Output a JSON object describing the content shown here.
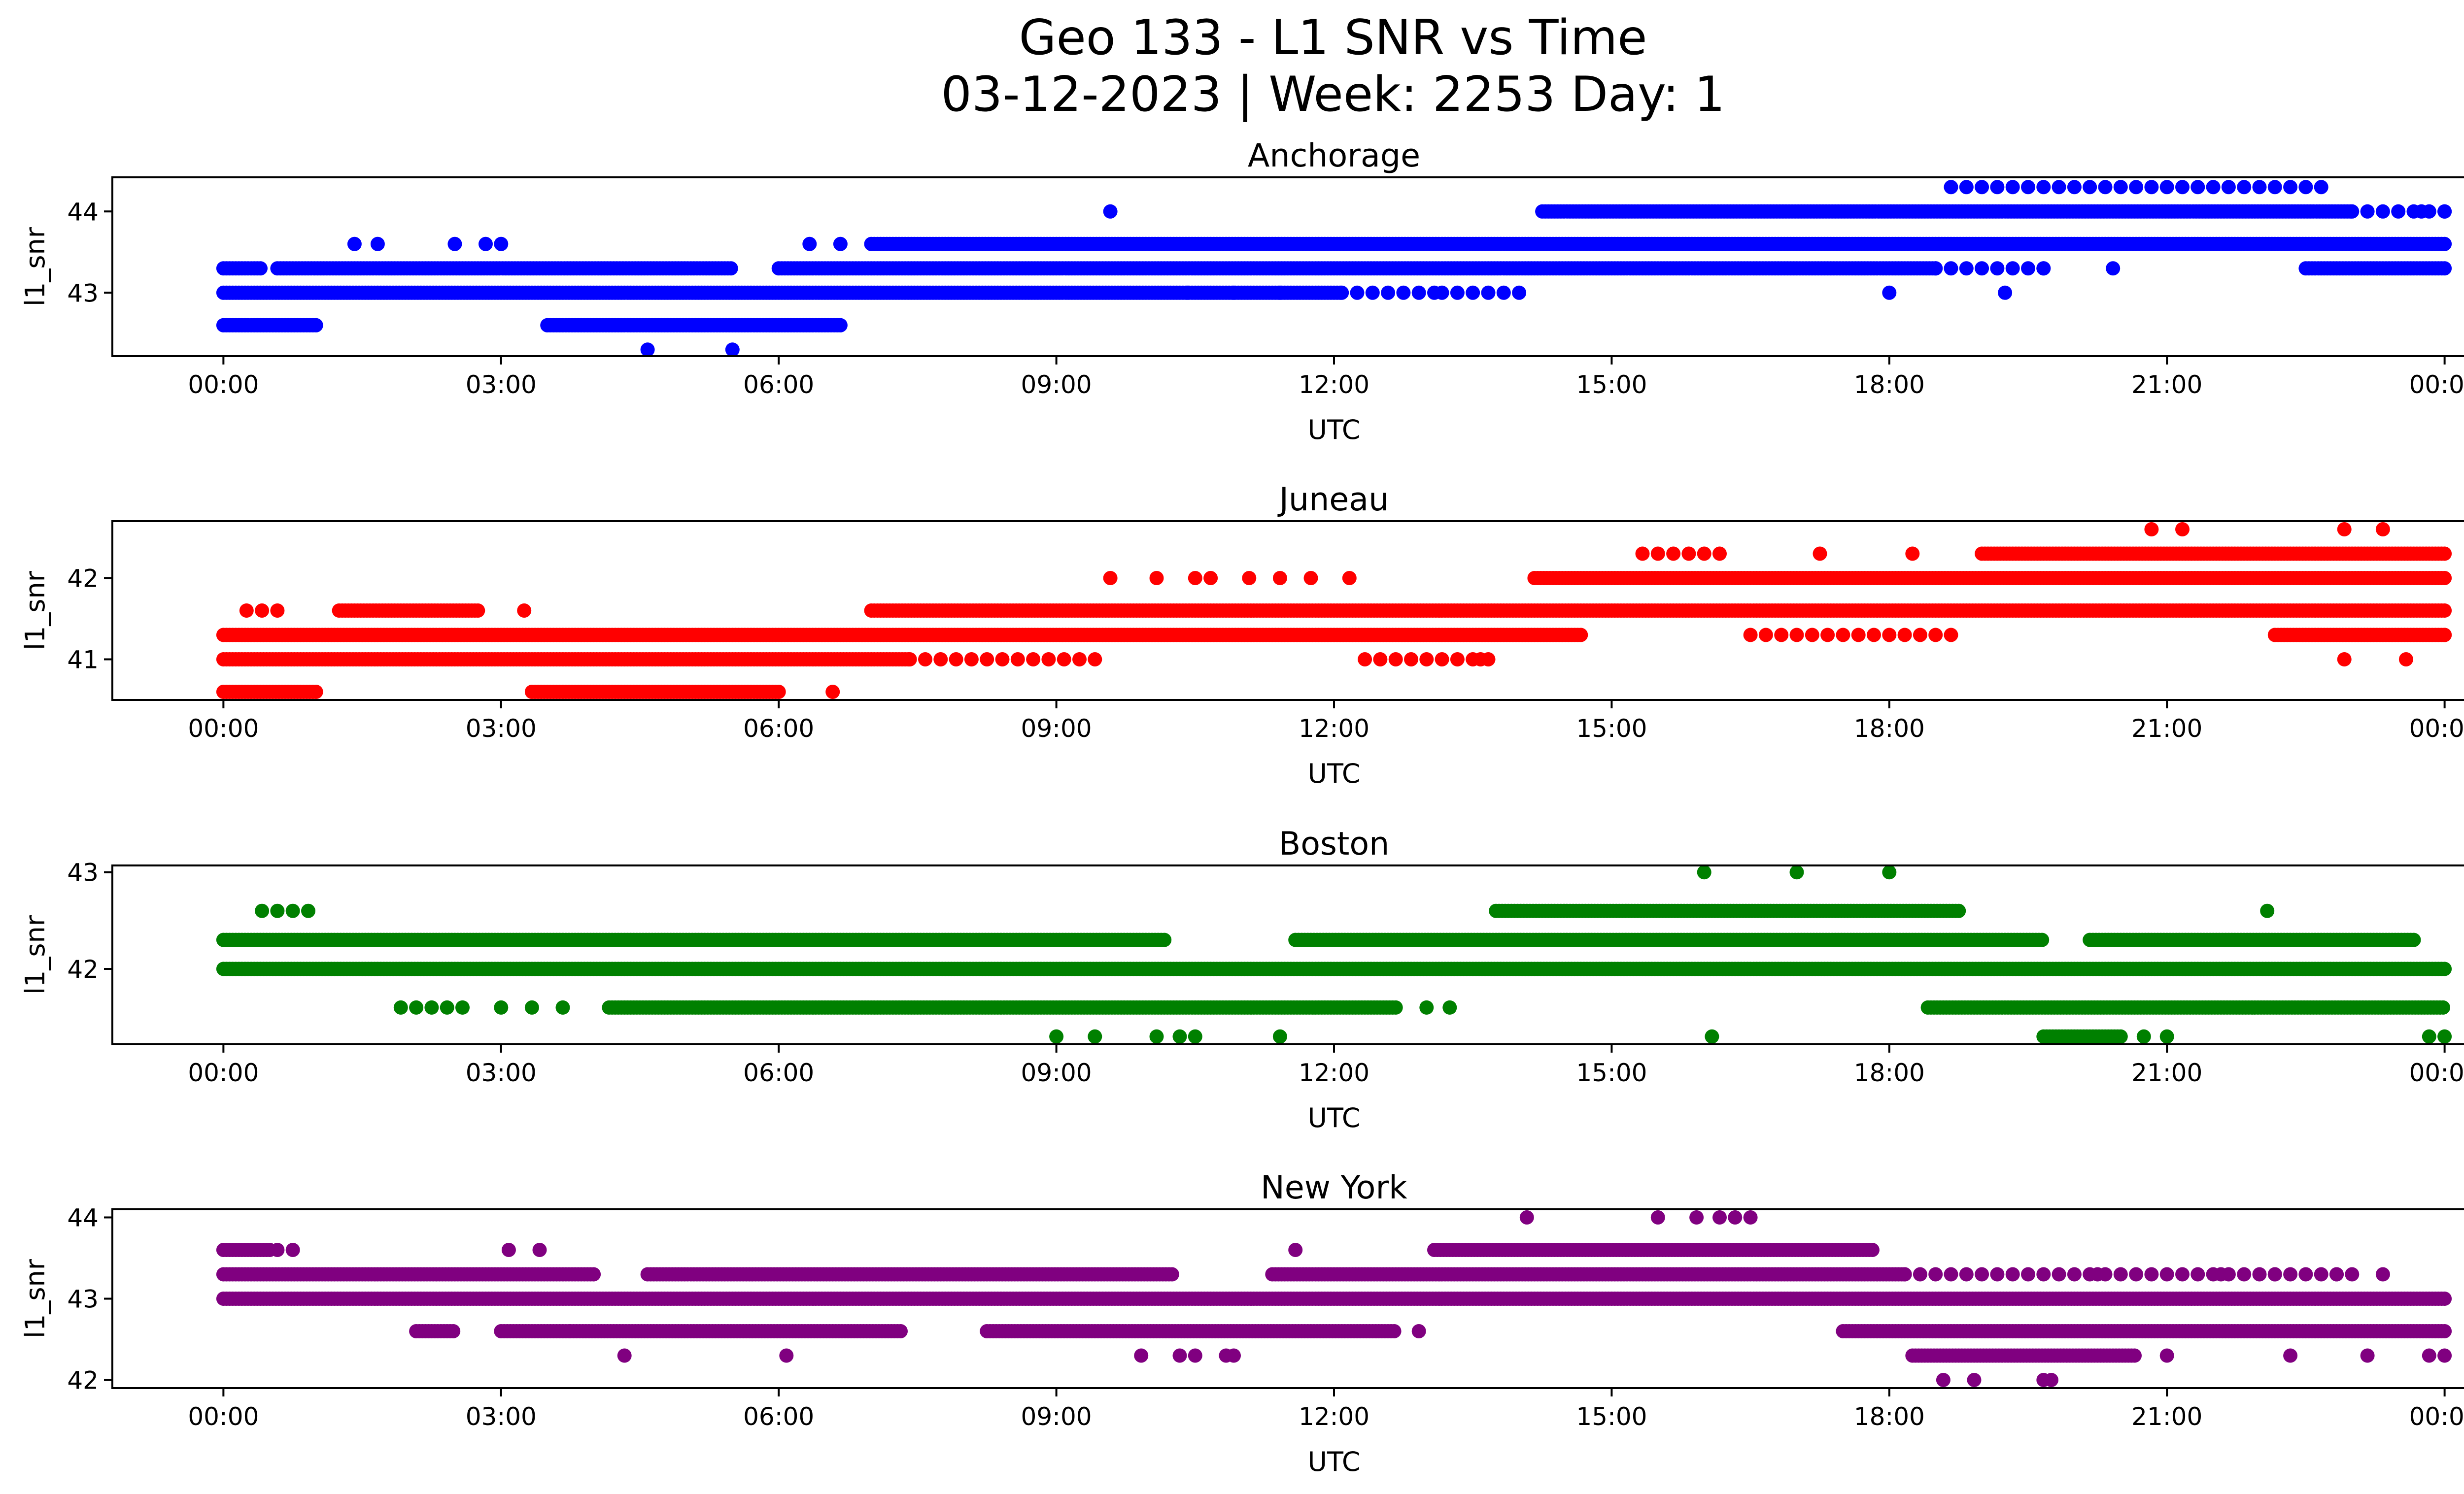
{
  "figure": {
    "title_line1": "Geo 133 - L1 SNR vs Time",
    "title_line2": "03-12-2023 | Week: 2253 Day: 1"
  },
  "chart_data": [
    {
      "type": "scatter",
      "title": "Anchorage",
      "xlabel": "UTC",
      "ylabel": "l1_snr",
      "color": "#0000ff",
      "xlim": [
        "-01:12",
        "25:12"
      ],
      "ylim": [
        42.22,
        44.42
      ],
      "x_ticks": [
        "00:00",
        "03:00",
        "06:00",
        "09:00",
        "12:00",
        "15:00",
        "18:00",
        "21:00",
        "00:00"
      ],
      "y_ticks": [
        43,
        44
      ],
      "levels": [
        {
          "y": 43.0,
          "ranges": [
            [
              "00:00",
              "12:05"
            ],
            [
              "12:05",
              "13:10",
              "sparse"
            ],
            [
              "13:10",
              "14:00",
              "sparse"
            ]
          ]
        },
        {
          "y": 43.3,
          "ranges": [
            [
              "00:00",
              "00:25"
            ],
            [
              "00:35",
              "05:30"
            ],
            [
              "06:00",
              "18:30"
            ],
            [
              "18:30",
              "19:40",
              "sparse"
            ],
            [
              "22:30",
              "24:00"
            ]
          ]
        },
        {
          "y": 43.6,
          "ranges": [
            [
              "07:00",
              "24:00"
            ]
          ]
        },
        {
          "y": 44.0,
          "ranges": [
            [
              "14:15",
              "23:00"
            ],
            [
              "23:00",
              "24:00",
              "sparse"
            ]
          ]
        },
        {
          "y": 44.3,
          "ranges": [
            [
              "18:40",
              "22:40",
              "sparse"
            ]
          ]
        },
        {
          "y": 42.6,
          "ranges": [
            [
              "00:00",
              "01:00"
            ],
            [
              "03:30",
              "06:40"
            ]
          ]
        }
      ],
      "extra_points": [
        [
          "01:25",
          43.6
        ],
        [
          "01:40",
          43.6
        ],
        [
          "02:30",
          43.6
        ],
        [
          "02:50",
          43.6
        ],
        [
          "03:00",
          43.6
        ],
        [
          "04:35",
          42.3
        ],
        [
          "05:30",
          42.3
        ],
        [
          "06:20",
          43.6
        ],
        [
          "06:40",
          43.6
        ],
        [
          "09:35",
          44.0
        ],
        [
          "10:25",
          43.0
        ],
        [
          "10:55",
          43.0
        ],
        [
          "11:25",
          43.0
        ],
        [
          "18:00",
          43.0
        ],
        [
          "19:15",
          43.0
        ],
        [
          "19:40",
          43.3
        ],
        [
          "20:25",
          43.3
        ],
        [
          "23:45",
          44.0
        ],
        [
          "24:00",
          44.0
        ]
      ]
    },
    {
      "type": "scatter",
      "title": "Juneau",
      "xlabel": "UTC",
      "ylabel": "l1_snr",
      "color": "#ff0000",
      "xlim": [
        "-01:12",
        "25:12"
      ],
      "ylim": [
        40.5,
        42.7
      ],
      "x_ticks": [
        "00:00",
        "03:00",
        "06:00",
        "09:00",
        "12:00",
        "15:00",
        "18:00",
        "21:00",
        "00:00"
      ],
      "y_ticks": [
        41,
        42
      ],
      "levels": [
        {
          "y": 41.0,
          "ranges": [
            [
              "00:00",
              "07:25"
            ],
            [
              "07:25",
              "09:30",
              "sparse"
            ],
            [
              "12:20",
              "13:40",
              "sparse"
            ]
          ]
        },
        {
          "y": 41.3,
          "ranges": [
            [
              "00:00",
              "14:40"
            ],
            [
              "16:30",
              "18:40",
              "sparse"
            ],
            [
              "22:10",
              "24:00"
            ]
          ]
        },
        {
          "y": 41.6,
          "ranges": [
            [
              "01:15",
              "02:45"
            ],
            [
              "07:00",
              "24:00"
            ]
          ]
        },
        {
          "y": 42.0,
          "ranges": [
            [
              "14:10",
              "24:00"
            ]
          ]
        },
        {
          "y": 42.3,
          "ranges": [
            [
              "15:20",
              "16:10",
              "sparse"
            ],
            [
              "19:00",
              "24:00"
            ]
          ]
        },
        {
          "y": 40.6,
          "ranges": [
            [
              "00:00",
              "01:00"
            ],
            [
              "03:20",
              "06:00"
            ]
          ]
        }
      ],
      "extra_points": [
        [
          "00:15",
          41.6
        ],
        [
          "00:25",
          41.6
        ],
        [
          "00:35",
          41.6
        ],
        [
          "03:15",
          41.6
        ],
        [
          "06:35",
          40.6
        ],
        [
          "09:35",
          42.0
        ],
        [
          "10:05",
          42.0
        ],
        [
          "10:30",
          42.0
        ],
        [
          "10:40",
          42.0
        ],
        [
          "11:05",
          42.0
        ],
        [
          "11:25",
          42.0
        ],
        [
          "11:45",
          42.0
        ],
        [
          "12:10",
          42.0
        ],
        [
          "13:35",
          41.0
        ],
        [
          "17:15",
          42.3
        ],
        [
          "18:15",
          42.3
        ],
        [
          "20:50",
          42.6
        ],
        [
          "21:10",
          42.6
        ],
        [
          "22:55",
          42.6
        ],
        [
          "23:20",
          42.6
        ],
        [
          "22:55",
          41.0
        ],
        [
          "23:35",
          41.0
        ],
        [
          "24:00",
          41.3
        ]
      ]
    },
    {
      "type": "scatter",
      "title": "Boston",
      "xlabel": "UTC",
      "ylabel": "l1_snr",
      "color": "#008000",
      "xlim": [
        "-01:12",
        "25:12"
      ],
      "ylim": [
        41.22,
        43.07
      ],
      "x_ticks": [
        "00:00",
        "03:00",
        "06:00",
        "09:00",
        "12:00",
        "15:00",
        "18:00",
        "21:00",
        "00:00"
      ],
      "y_ticks": [
        42,
        43
      ],
      "levels": [
        {
          "y": 42.0,
          "ranges": [
            [
              "00:00",
              "24:00"
            ]
          ]
        },
        {
          "y": 42.3,
          "ranges": [
            [
              "00:00",
              "10:10"
            ],
            [
              "11:35",
              "19:40"
            ],
            [
              "20:10",
              "23:40"
            ]
          ]
        },
        {
          "y": 42.6,
          "ranges": [
            [
              "13:45",
              "18:45"
            ]
          ]
        },
        {
          "y": 41.6,
          "ranges": [
            [
              "01:55",
              "02:35",
              "sparse"
            ],
            [
              "04:10",
              "12:40"
            ],
            [
              "18:25",
              "24:00"
            ]
          ]
        },
        {
          "y": 41.3,
          "ranges": [
            [
              "19:40",
              "20:30"
            ]
          ]
        }
      ],
      "extra_points": [
        [
          "00:25",
          42.6
        ],
        [
          "00:35",
          42.6
        ],
        [
          "00:45",
          42.6
        ],
        [
          "00:55",
          42.6
        ],
        [
          "03:00",
          41.6
        ],
        [
          "03:20",
          41.6
        ],
        [
          "03:40",
          41.6
        ],
        [
          "09:00",
          41.3
        ],
        [
          "09:25",
          41.3
        ],
        [
          "10:05",
          41.3
        ],
        [
          "10:20",
          41.3
        ],
        [
          "10:30",
          41.3
        ],
        [
          "11:25",
          41.3
        ],
        [
          "13:00",
          41.6
        ],
        [
          "13:15",
          41.6
        ],
        [
          "16:00",
          43.0
        ],
        [
          "17:00",
          43.0
        ],
        [
          "18:00",
          43.0
        ],
        [
          "16:05",
          41.3
        ],
        [
          "20:45",
          41.3
        ],
        [
          "21:00",
          41.3
        ],
        [
          "22:05",
          42.6
        ],
        [
          "23:50",
          41.3
        ],
        [
          "24:00",
          41.3
        ]
      ]
    },
    {
      "type": "scatter",
      "title": "New York",
      "xlabel": "UTC",
      "ylabel": "l1_snr",
      "color": "#800080",
      "xlim": [
        "-01:12",
        "25:12"
      ],
      "ylim": [
        41.9,
        44.1
      ],
      "x_ticks": [
        "00:00",
        "03:00",
        "06:00",
        "09:00",
        "12:00",
        "15:00",
        "18:00",
        "21:00",
        "00:00"
      ],
      "y_ticks": [
        42,
        43,
        44
      ],
      "levels": [
        {
          "y": 43.0,
          "ranges": [
            [
              "00:00",
              "24:00"
            ]
          ]
        },
        {
          "y": 43.3,
          "ranges": [
            [
              "00:00",
              "04:00"
            ],
            [
              "04:35",
              "10:15"
            ],
            [
              "11:20",
              "18:10"
            ],
            [
              "18:10",
              "23:00",
              "sparse"
            ]
          ]
        },
        {
          "y": 43.6,
          "ranges": [
            [
              "00:00",
              "00:30"
            ],
            [
              "13:05",
              "17:50"
            ]
          ]
        },
        {
          "y": 42.6,
          "ranges": [
            [
              "02:05",
              "02:30"
            ],
            [
              "03:00",
              "03:45"
            ],
            [
              "03:45",
              "07:20"
            ],
            [
              "08:15",
              "12:40"
            ],
            [
              "17:30",
              "24:00"
            ]
          ]
        },
        {
          "y": 42.3,
          "ranges": [
            [
              "18:15",
              "20:40"
            ]
          ]
        }
      ],
      "extra_points": [
        [
          "00:35",
          43.6
        ],
        [
          "00:45",
          43.6
        ],
        [
          "03:05",
          43.6
        ],
        [
          "03:25",
          43.6
        ],
        [
          "11:35",
          43.6
        ],
        [
          "14:05",
          44.0
        ],
        [
          "15:30",
          44.0
        ],
        [
          "15:55",
          44.0
        ],
        [
          "16:10",
          44.0
        ],
        [
          "16:20",
          44.0
        ],
        [
          "16:30",
          44.0
        ],
        [
          "04:20",
          42.3
        ],
        [
          "06:05",
          42.3
        ],
        [
          "09:55",
          42.3
        ],
        [
          "10:20",
          42.3
        ],
        [
          "10:30",
          42.3
        ],
        [
          "10:50",
          42.3
        ],
        [
          "10:55",
          42.3
        ],
        [
          "18:35",
          42.0
        ],
        [
          "18:55",
          42.0
        ],
        [
          "19:40",
          42.0
        ],
        [
          "19:45",
          42.0
        ],
        [
          "21:00",
          42.3
        ],
        [
          "22:20",
          42.3
        ],
        [
          "23:10",
          42.3
        ],
        [
          "23:50",
          42.3
        ],
        [
          "24:00",
          42.3
        ],
        [
          "12:55",
          42.6
        ],
        [
          "20:15",
          43.3
        ],
        [
          "21:35",
          43.3
        ],
        [
          "22:10",
          43.3
        ],
        [
          "22:50",
          43.3
        ],
        [
          "23:20",
          43.3
        ]
      ]
    }
  ]
}
